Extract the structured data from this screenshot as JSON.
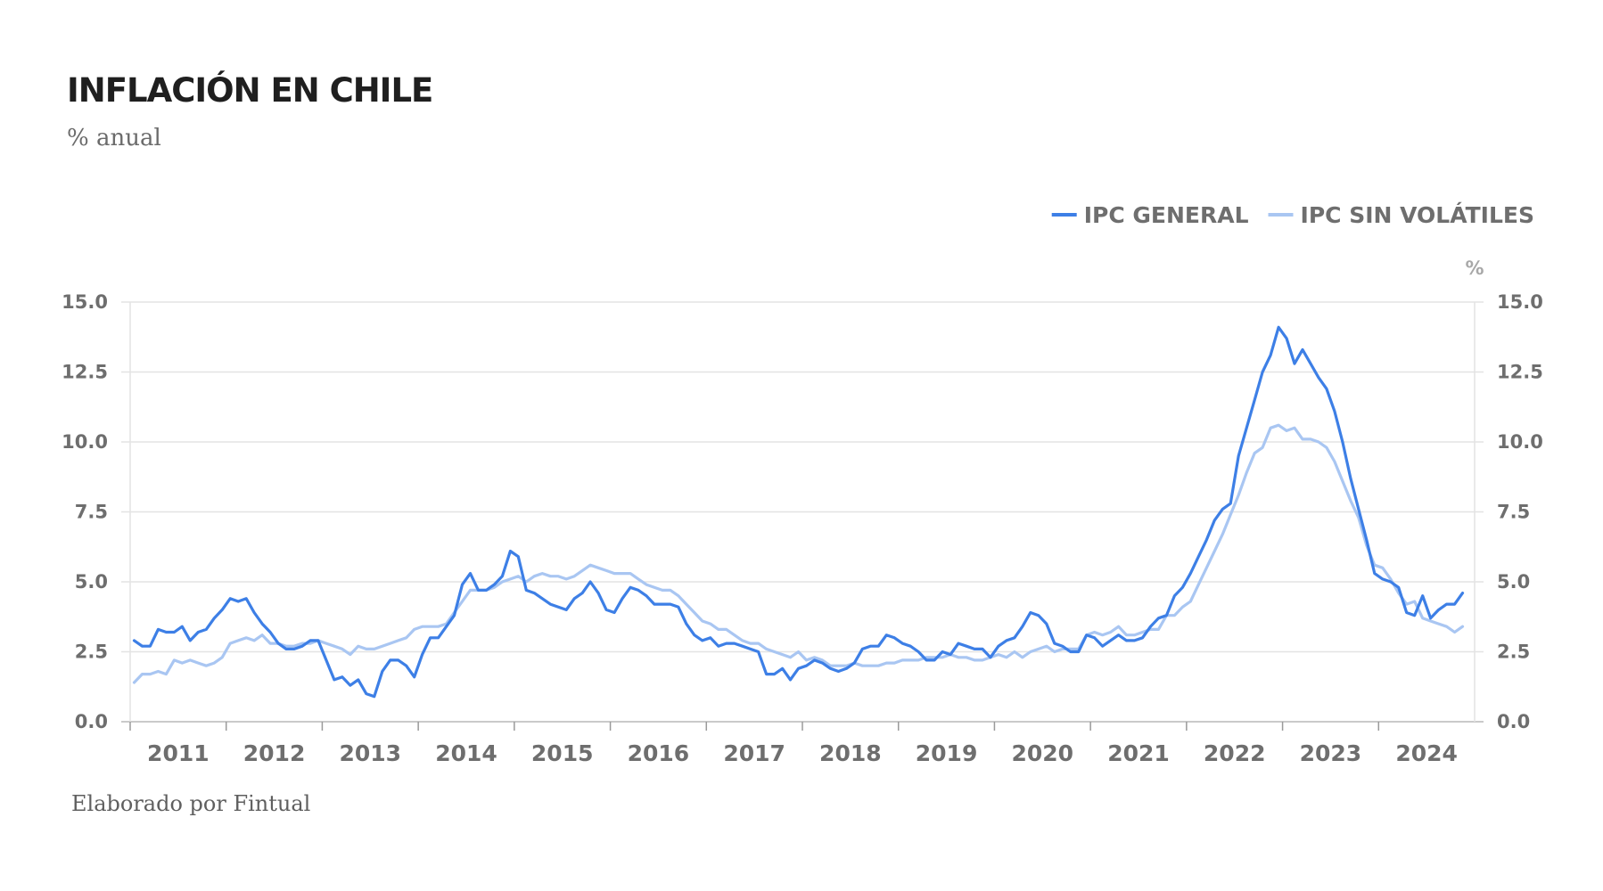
{
  "title": "INFLACIÓN EN CHILE",
  "subtitle": "% anual",
  "credit": "Elaborado por Fintual",
  "chart_data": {
    "type": "line",
    "ylim": [
      0,
      15
    ],
    "yticks": [
      "0.0",
      "2.5",
      "5.0",
      "7.5",
      "10.0",
      "12.5",
      "15.0"
    ],
    "y_unit": "%",
    "x_start": "2011-01",
    "x_end": "2024-12",
    "x_ticks": [
      "2011",
      "2012",
      "2013",
      "2014",
      "2015",
      "2016",
      "2017",
      "2018",
      "2019",
      "2020",
      "2021",
      "2022",
      "2023",
      "2024"
    ],
    "grid": "horizontal",
    "legend": "top-right",
    "series": [
      {
        "name": "IPC GENERAL",
        "color": "#3d7fe6",
        "values": [
          2.9,
          2.7,
          2.7,
          3.3,
          3.2,
          3.2,
          3.4,
          2.9,
          3.2,
          3.3,
          3.7,
          4.0,
          4.4,
          4.3,
          4.4,
          3.9,
          3.5,
          3.2,
          2.8,
          2.6,
          2.6,
          2.7,
          2.9,
          2.9,
          2.2,
          1.5,
          1.6,
          1.3,
          1.5,
          1.0,
          0.9,
          1.8,
          2.2,
          2.2,
          2.0,
          1.6,
          2.4,
          3.0,
          3.0,
          3.4,
          3.8,
          4.9,
          5.3,
          4.7,
          4.7,
          4.9,
          5.2,
          6.1,
          5.9,
          4.7,
          4.6,
          4.4,
          4.2,
          4.1,
          4.0,
          4.4,
          4.6,
          5.0,
          4.6,
          4.0,
          3.9,
          4.4,
          4.8,
          4.7,
          4.5,
          4.2,
          4.2,
          4.2,
          4.1,
          3.5,
          3.1,
          2.9,
          3.0,
          2.7,
          2.8,
          2.8,
          2.7,
          2.6,
          2.5,
          1.7,
          1.7,
          1.9,
          1.5,
          1.9,
          2.0,
          2.2,
          2.1,
          1.9,
          1.8,
          1.9,
          2.1,
          2.6,
          2.7,
          2.7,
          3.1,
          3.0,
          2.8,
          2.7,
          2.5,
          2.2,
          2.2,
          2.5,
          2.4,
          2.8,
          2.7,
          2.6,
          2.6,
          2.3,
          2.7,
          2.9,
          3.0,
          3.4,
          3.9,
          3.8,
          3.5,
          2.8,
          2.7,
          2.5,
          2.5,
          3.1,
          3.0,
          2.7,
          2.9,
          3.1,
          2.9,
          2.9,
          3.0,
          3.4,
          3.7,
          3.8,
          4.5,
          4.8,
          5.3,
          5.9,
          6.5,
          7.2,
          7.6,
          7.8,
          9.5,
          10.5,
          11.5,
          12.5,
          13.1,
          14.1,
          13.7,
          12.8,
          13.3,
          12.8,
          12.3,
          11.9,
          11.1,
          10.0,
          8.7,
          7.6,
          6.5,
          5.3,
          5.1,
          5.0,
          4.8,
          3.9,
          3.8,
          4.5,
          3.7,
          4.0,
          4.2,
          4.2,
          4.6
        ]
      },
      {
        "name": "IPC SIN VOLÁTILES",
        "color": "#a9c6f2",
        "values": [
          1.4,
          1.7,
          1.7,
          1.8,
          1.7,
          2.2,
          2.1,
          2.2,
          2.1,
          2.0,
          2.1,
          2.3,
          2.8,
          2.9,
          3.0,
          2.9,
          3.1,
          2.8,
          2.8,
          2.7,
          2.7,
          2.8,
          2.8,
          2.9,
          2.8,
          2.7,
          2.6,
          2.4,
          2.7,
          2.6,
          2.6,
          2.7,
          2.8,
          2.9,
          3.0,
          3.3,
          3.4,
          3.4,
          3.4,
          3.5,
          3.9,
          4.3,
          4.7,
          4.7,
          4.7,
          4.8,
          5.0,
          5.1,
          5.2,
          5.0,
          5.2,
          5.3,
          5.2,
          5.2,
          5.1,
          5.2,
          5.4,
          5.6,
          5.5,
          5.4,
          5.3,
          5.3,
          5.3,
          5.1,
          4.9,
          4.8,
          4.7,
          4.7,
          4.5,
          4.2,
          3.9,
          3.6,
          3.5,
          3.3,
          3.3,
          3.1,
          2.9,
          2.8,
          2.8,
          2.6,
          2.5,
          2.4,
          2.3,
          2.5,
          2.2,
          2.3,
          2.2,
          2.0,
          2.0,
          2.0,
          2.1,
          2.0,
          2.0,
          2.0,
          2.1,
          2.1,
          2.2,
          2.2,
          2.2,
          2.3,
          2.3,
          2.3,
          2.4,
          2.3,
          2.3,
          2.2,
          2.2,
          2.3,
          2.4,
          2.3,
          2.5,
          2.3,
          2.5,
          2.6,
          2.7,
          2.5,
          2.6,
          2.6,
          2.6,
          3.1,
          3.2,
          3.1,
          3.2,
          3.4,
          3.1,
          3.1,
          3.2,
          3.3,
          3.3,
          3.8,
          3.8,
          4.1,
          4.3,
          4.9,
          5.5,
          6.1,
          6.7,
          7.4,
          8.1,
          8.9,
          9.6,
          9.8,
          10.5,
          10.6,
          10.4,
          10.5,
          10.1,
          10.1,
          10.0,
          9.8,
          9.3,
          8.6,
          7.9,
          7.3,
          6.3,
          5.6,
          5.5,
          5.1,
          4.6,
          4.2,
          4.3,
          3.7,
          3.6,
          3.5,
          3.4,
          3.2,
          3.4
        ]
      }
    ]
  }
}
